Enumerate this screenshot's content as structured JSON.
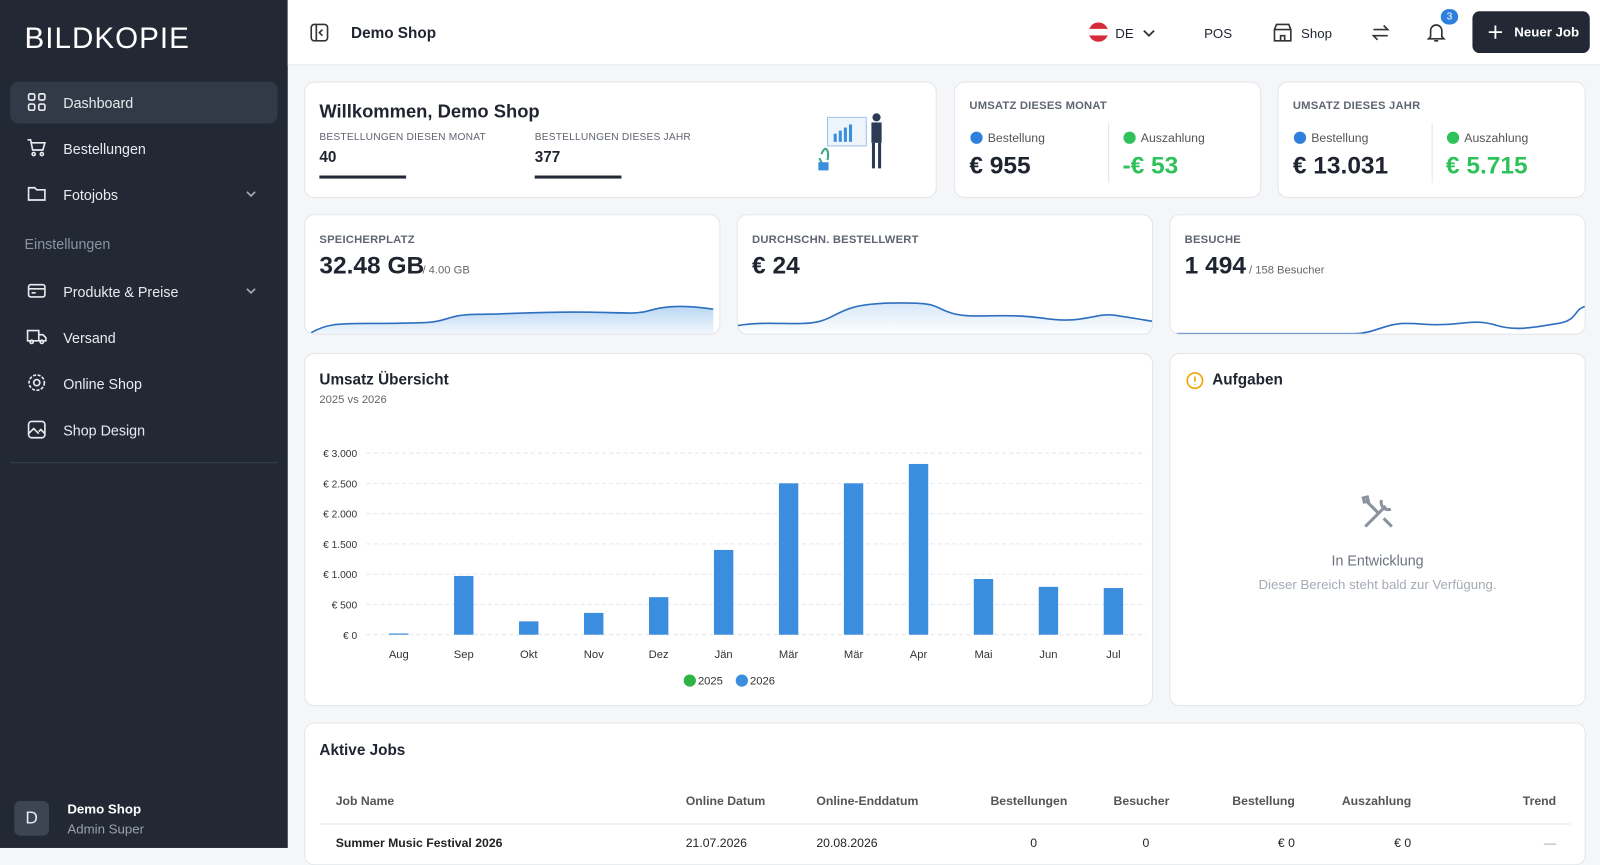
{
  "sidebar": {
    "logo": "BILDKOPIE",
    "nav": [
      "Dashboard",
      "Bestellungen",
      "Fotojobs"
    ],
    "section": "Einstellungen",
    "settings": [
      "Produkte & Preise",
      "Versand",
      "Online Shop",
      "Shop Design"
    ],
    "user": {
      "avatar": "D",
      "name": "Demo Shop",
      "role": "Admin Super"
    }
  },
  "header": {
    "shop": "Demo Shop",
    "language": "DE",
    "pos": "POS",
    "shop_link": "Shop",
    "notifications": "3",
    "new_job": "Neuer Job"
  },
  "welcome": {
    "title": "Willkommen, Demo Shop",
    "stats": [
      {
        "label": "BESTELLUNGEN DIESEN MONAT",
        "value": "40"
      },
      {
        "label": "BESTELLUNGEN DIESES JAHR",
        "value": "377"
      }
    ]
  },
  "revenue": [
    {
      "title": "UMSATZ DIESES MONAT",
      "order_label": "Bestellung",
      "order": "€ 955",
      "payout_label": "Auszahlung",
      "payout": "-€ 53"
    },
    {
      "title": "UMSATZ DIESES JAHR",
      "order_label": "Bestellung",
      "order": "€ 13.031",
      "payout_label": "Auszahlung",
      "payout": "€ 5.715"
    }
  ],
  "kpis": [
    {
      "label": "SPEICHERPLATZ",
      "value": "32.48 GB",
      "sub": "/ 4.00 GB"
    },
    {
      "label": "DURCHSCHN. BESTELLWERT",
      "value": "€ 24"
    },
    {
      "label": "BESUCHE",
      "value": "1 494",
      "sub": "/ 158 Besucher"
    }
  ],
  "chart_data": {
    "type": "bar",
    "title": "Umsatz Übersicht",
    "subtitle": "2025 vs 2026",
    "categories": [
      "Aug",
      "Sep",
      "Okt",
      "Nov",
      "Dez",
      "Jän",
      "Mär",
      "Mär",
      "Apr",
      "Mai",
      "Jun",
      "Jul"
    ],
    "series": [
      {
        "name": "2025",
        "color": "#2fb344",
        "values": [
          0,
          0,
          0,
          0,
          0,
          0,
          0,
          0,
          0,
          0,
          0,
          0
        ]
      },
      {
        "name": "2026",
        "color": "#3b8ddd",
        "values": [
          20,
          970,
          220,
          360,
          620,
          1400,
          2500,
          2500,
          2820,
          920,
          790,
          770
        ]
      }
    ],
    "ylim": [
      0,
      3000
    ],
    "yticks": [
      {
        "value": 0,
        "label": "€ 0"
      },
      {
        "value": 500,
        "label": "€ 500"
      },
      {
        "value": 1000,
        "label": "€ 1.000"
      },
      {
        "value": 1500,
        "label": "€ 1.500"
      },
      {
        "value": 2000,
        "label": "€ 2.000"
      },
      {
        "value": 2500,
        "label": "€ 2.500"
      },
      {
        "value": 3000,
        "label": "€ 3.000"
      }
    ],
    "grid": true
  },
  "tasks": {
    "title": "Aufgaben",
    "status": "In Entwicklung",
    "message": "Dieser Bereich steht bald zur Verfügung."
  },
  "jobs": {
    "title": "Aktive Jobs",
    "columns": [
      "Job Name",
      "Online Datum",
      "Online-Enddatum",
      "Bestellungen",
      "Besucher",
      "Bestellung",
      "Auszahlung",
      "Trend"
    ],
    "rows": [
      [
        "Summer Music Festival 2026",
        "21.07.2026",
        "20.08.2026",
        "0",
        "0",
        "€ 0",
        "€ 0",
        "—"
      ]
    ]
  }
}
